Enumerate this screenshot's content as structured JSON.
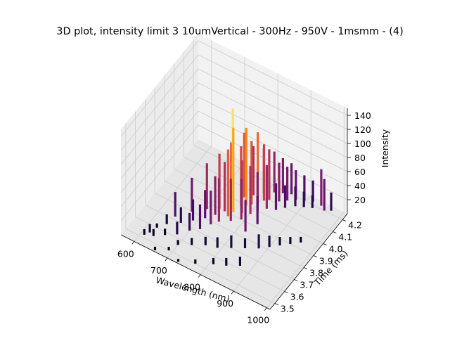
{
  "chart_data": {
    "type": "scatter",
    "projection": "3d",
    "title": "3D plot, intensity limit 3 10umVertical - 300Hz - 950V - 1msmm - (4)",
    "xlabel": "Wavelength (nm)",
    "ylabel": "Time (ms)",
    "zlabel": "Intensity",
    "xlim": [
      560,
      1010
    ],
    "ylim": [
      3.45,
      4.25
    ],
    "zlim": [
      0,
      150
    ],
    "x_ticks": [
      "600",
      "700",
      "800",
      "900",
      "1000"
    ],
    "y_ticks": [
      "3.5",
      "3.6",
      "3.7",
      "3.8",
      "3.9",
      "4.0",
      "4.1",
      "4.2"
    ],
    "z_ticks": [
      "20",
      "40",
      "60",
      "80",
      "100",
      "120",
      "140"
    ],
    "grid": true,
    "colormap": "inferno",
    "colormap_stops": [
      "#000004",
      "#1b0c41",
      "#4a0c6b",
      "#781c6d",
      "#a52c60",
      "#cf4446",
      "#ed6925",
      "#fb9b06",
      "#f7d13d",
      "#fcffa4"
    ],
    "pane_color": "#f2f2f2",
    "grid_color": "#cccccc",
    "series": [
      {
        "points": [
          [
            610,
            3.52,
            8
          ],
          [
            618,
            3.55,
            12
          ],
          [
            625,
            3.6,
            6
          ],
          [
            632,
            3.54,
            10
          ],
          [
            640,
            3.65,
            14
          ],
          [
            655,
            3.58,
            9
          ],
          [
            668,
            3.7,
            22
          ],
          [
            680,
            3.62,
            18
          ],
          [
            690,
            3.75,
            30
          ],
          [
            700,
            3.68,
            25
          ],
          [
            712,
            3.8,
            40
          ],
          [
            720,
            3.72,
            35
          ],
          [
            728,
            3.85,
            55
          ],
          [
            735,
            3.78,
            48
          ],
          [
            742,
            3.9,
            70
          ],
          [
            748,
            3.82,
            62
          ],
          [
            752,
            3.95,
            140
          ],
          [
            758,
            3.88,
            95
          ],
          [
            762,
            3.92,
            120
          ],
          [
            768,
            3.98,
            85
          ],
          [
            772,
            3.86,
            60
          ],
          [
            778,
            4.0,
            110
          ],
          [
            782,
            3.94,
            75
          ],
          [
            788,
            4.02,
            90
          ],
          [
            792,
            3.9,
            58
          ],
          [
            798,
            4.05,
            100
          ],
          [
            802,
            3.96,
            68
          ],
          [
            808,
            4.08,
            80
          ],
          [
            812,
            4.0,
            55
          ],
          [
            818,
            4.1,
            72
          ],
          [
            822,
            3.84,
            45
          ],
          [
            828,
            4.04,
            62
          ],
          [
            835,
            3.92,
            40
          ],
          [
            842,
            4.12,
            55
          ],
          [
            850,
            4.06,
            38
          ],
          [
            858,
            4.15,
            48
          ],
          [
            866,
            4.1,
            32
          ],
          [
            875,
            4.18,
            42
          ],
          [
            885,
            4.14,
            28
          ],
          [
            895,
            4.2,
            36
          ],
          [
            905,
            4.16,
            22
          ],
          [
            915,
            4.22,
            30
          ],
          [
            925,
            4.18,
            18
          ],
          [
            940,
            4.22,
            52
          ],
          [
            955,
            4.2,
            45
          ],
          [
            970,
            4.22,
            26
          ],
          [
            690,
            3.5,
            5
          ],
          [
            700,
            3.56,
            7
          ],
          [
            730,
            3.6,
            10
          ],
          [
            760,
            3.64,
            12
          ],
          [
            790,
            3.66,
            15
          ],
          [
            820,
            3.7,
            18
          ],
          [
            850,
            3.74,
            14
          ],
          [
            880,
            3.78,
            20
          ],
          [
            900,
            3.82,
            16
          ],
          [
            920,
            3.86,
            12
          ],
          [
            940,
            3.9,
            10
          ],
          [
            960,
            3.94,
            8
          ],
          [
            730,
            3.46,
            4
          ],
          [
            770,
            3.5,
            6
          ],
          [
            810,
            3.55,
            9
          ],
          [
            840,
            3.58,
            11
          ],
          [
            870,
            3.62,
            13
          ],
          [
            660,
            3.46,
            5
          ],
          [
            645,
            3.72,
            35
          ],
          [
            672,
            3.8,
            48
          ],
          [
            700,
            3.86,
            65
          ],
          [
            726,
            3.9,
            78
          ],
          [
            744,
            3.96,
            88
          ],
          [
            760,
            4.04,
            92
          ],
          [
            776,
            4.08,
            70
          ],
          [
            796,
            4.12,
            65
          ],
          [
            816,
            4.16,
            58
          ],
          [
            836,
            4.18,
            50
          ],
          [
            856,
            4.2,
            44
          ]
        ]
      }
    ]
  }
}
